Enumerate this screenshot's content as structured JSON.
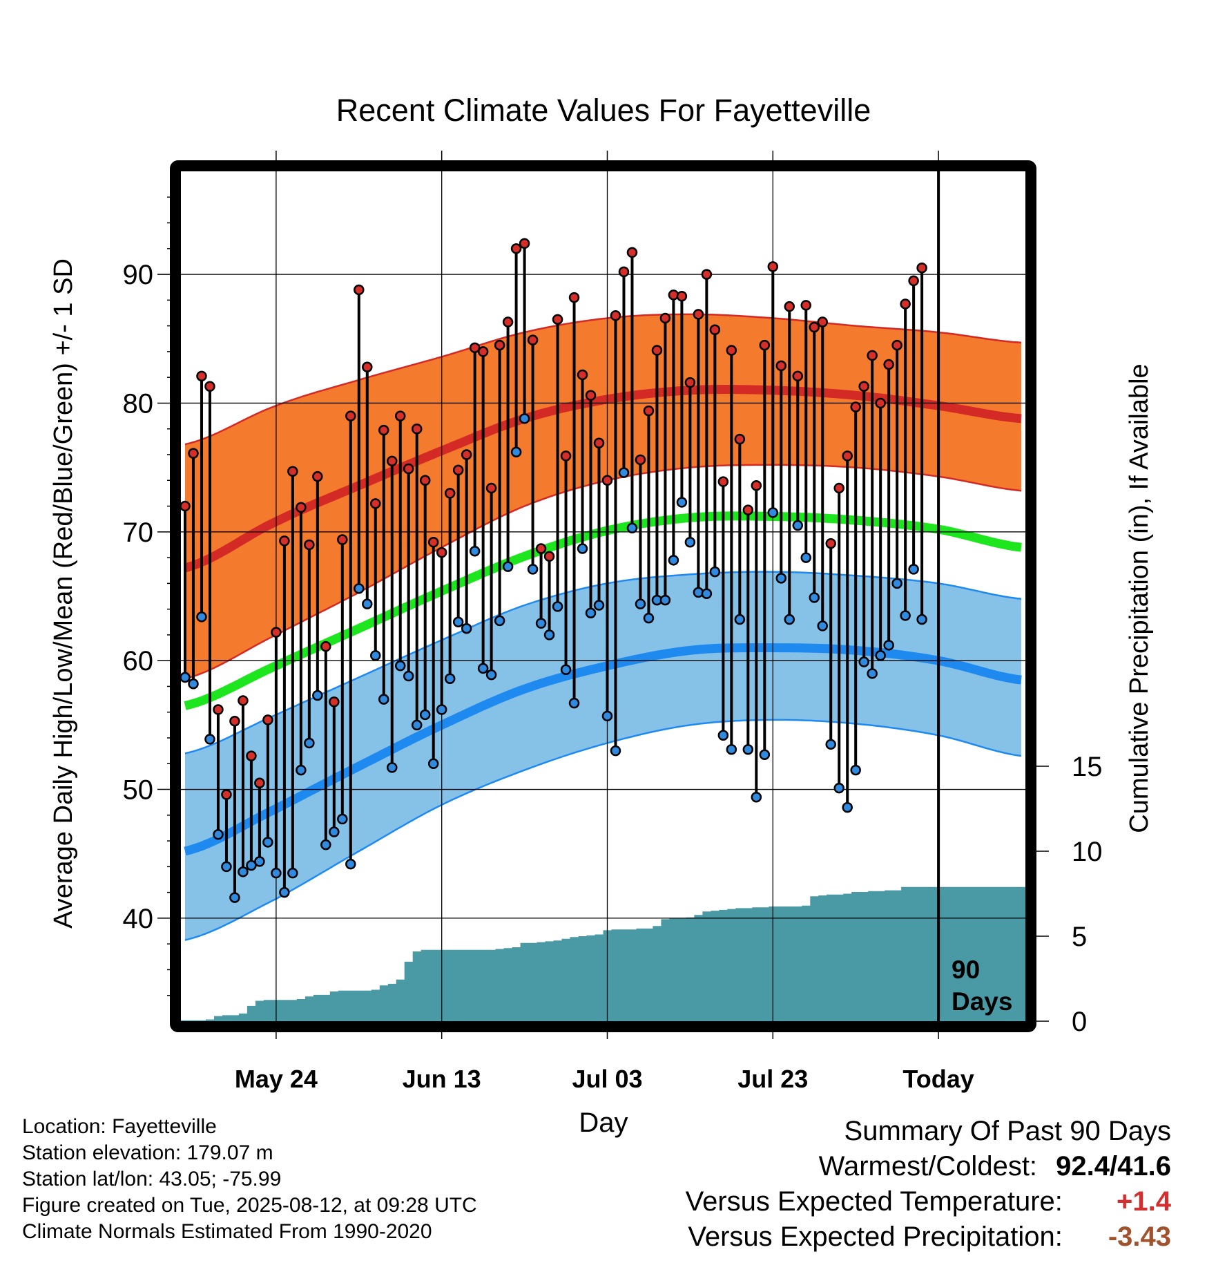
{
  "chart_data": {
    "type": "line",
    "title": "Recent Climate Values For Fayetteville",
    "xlabel": "Day",
    "ylabel_left": "Average Daily High/Low/Mean (Red/Blue/Green) +/- 1 SD",
    "ylabel_right": "Cumulative Precipitation (in), If Available",
    "x_tick_labels": [
      "May 24",
      "Jun 13",
      "Jul 03",
      "Jul 23",
      "Today"
    ],
    "x_tick_days": [
      12,
      32,
      52,
      72,
      92
    ],
    "y_ticks_left": [
      40,
      50,
      60,
      70,
      80,
      90
    ],
    "y_ticks_right": [
      0,
      5,
      10,
      15
    ],
    "ylim_left": [
      32,
      98
    ],
    "ylim_right": [
      0,
      50
    ],
    "xlim": [
      0.5,
      102.5
    ],
    "today_day": 92,
    "today_label_line1": "90",
    "today_label_line2": "Days",
    "grid": true,
    "colors": {
      "high_band": "#F47A2E",
      "high_mean": "#D42A26",
      "low_band": "#86C1E8",
      "low_mean": "#1E8AF0",
      "mean": "#1EE61E",
      "precip": "#4A9AA6",
      "high_dot": "#D62F2A",
      "low_dot": "#2F8AE0"
    },
    "normal_days": [
      1,
      12,
      22,
      32,
      42,
      52,
      62,
      72,
      82,
      92,
      102
    ],
    "normal_high_mean": [
      67.2,
      70.8,
      73.6,
      76.3,
      78.8,
      80.3,
      81.0,
      81.0,
      80.6,
      79.8,
      78.8
    ],
    "normal_high_plus_sd": [
      76.8,
      79.8,
      81.8,
      83.6,
      85.5,
      86.6,
      86.9,
      86.6,
      86.0,
      85.5,
      84.7
    ],
    "normal_high_minus_sd": [
      58.6,
      62.0,
      65.3,
      68.8,
      72.0,
      74.0,
      75.0,
      75.2,
      75.0,
      74.3,
      73.2
    ],
    "normal_mean": [
      56.5,
      59.6,
      62.5,
      65.4,
      68.1,
      70.1,
      71.1,
      71.2,
      70.9,
      70.2,
      68.8
    ],
    "normal_low_mean": [
      45.2,
      48.5,
      51.8,
      55.0,
      57.8,
      59.6,
      60.8,
      61.0,
      60.8,
      60.0,
      58.5
    ],
    "normal_low_plus_sd": [
      52.8,
      55.8,
      58.7,
      61.6,
      64.3,
      66.0,
      66.7,
      66.9,
      66.6,
      66.0,
      64.8
    ],
    "normal_low_minus_sd": [
      38.3,
      41.5,
      45.2,
      48.8,
      51.5,
      53.6,
      55.0,
      55.4,
      55.1,
      54.2,
      52.6
    ],
    "daily_high": [
      72.0,
      76.1,
      82.1,
      81.3,
      56.2,
      49.6,
      55.3,
      56.9,
      52.6,
      50.5,
      55.4,
      62.2,
      69.3,
      74.7,
      71.9,
      69.0,
      74.3,
      61.1,
      56.8,
      69.4,
      79.0,
      88.8,
      82.8,
      72.2,
      77.9,
      75.5,
      79.0,
      74.9,
      78.0,
      74.0,
      69.2,
      68.4,
      73.0,
      74.8,
      76.0,
      84.3,
      84.0,
      73.4,
      84.5,
      86.3,
      92.0,
      92.4,
      84.9,
      68.7,
      68.1,
      86.5,
      75.9,
      88.2,
      82.2,
      80.6,
      76.9,
      74.0,
      86.8,
      90.2,
      91.7,
      75.6,
      79.4,
      84.1,
      86.6,
      88.4,
      88.3,
      81.6,
      86.9,
      90.0,
      85.7,
      73.9,
      84.1,
      77.2,
      71.7,
      73.6,
      84.5,
      90.6,
      82.9,
      87.5,
      82.1,
      87.6,
      85.9,
      86.3,
      69.1,
      73.4,
      75.9,
      79.7,
      81.3,
      83.7,
      80.0,
      83.0,
      84.5,
      87.7,
      89.5,
      90.5
    ],
    "daily_low": [
      58.7,
      58.2,
      63.4,
      53.9,
      46.5,
      44.0,
      41.6,
      43.6,
      44.1,
      44.4,
      45.9,
      43.5,
      42.0,
      43.5,
      51.5,
      53.6,
      57.3,
      45.7,
      46.7,
      47.7,
      44.2,
      65.6,
      64.4,
      60.4,
      57.0,
      51.7,
      59.6,
      58.8,
      55.0,
      55.8,
      52.0,
      56.2,
      58.6,
      63.0,
      62.5,
      68.5,
      59.4,
      58.9,
      63.1,
      67.3,
      76.2,
      78.8,
      67.1,
      62.9,
      62.0,
      64.2,
      59.3,
      56.7,
      68.7,
      63.7,
      64.3,
      55.7,
      53.0,
      74.6,
      70.3,
      64.4,
      63.3,
      64.7,
      64.7,
      67.8,
      72.3,
      69.2,
      65.3,
      65.2,
      66.9,
      54.2,
      53.1,
      63.2,
      53.1,
      49.4,
      52.7,
      71.5,
      66.4,
      63.2,
      70.5,
      68.0,
      64.9,
      62.7,
      53.5,
      50.1,
      48.6,
      51.5,
      59.9,
      59.0,
      60.4,
      61.2,
      66.0,
      63.5,
      67.1,
      63.2
    ],
    "cumulative_precip_days": [
      1,
      4,
      5,
      6,
      7,
      8,
      9,
      10,
      11,
      12,
      13,
      14,
      15,
      16,
      17,
      18,
      19,
      20,
      21,
      22,
      23,
      24,
      25,
      26,
      27,
      28,
      29,
      30,
      31,
      32,
      33,
      34,
      35,
      36,
      37,
      38,
      39,
      40,
      41,
      42,
      43,
      44,
      45,
      46,
      47,
      48,
      49,
      50,
      51,
      52,
      53,
      54,
      55,
      56,
      57,
      58,
      59,
      60,
      61,
      62,
      63,
      64,
      65,
      66,
      67,
      68,
      69,
      70,
      71,
      72,
      73,
      74,
      75,
      76,
      77,
      78,
      79,
      80,
      81,
      82,
      83,
      84,
      85,
      86,
      87,
      88,
      89,
      90,
      91,
      92,
      102
    ],
    "cumulative_precip_in": [
      0.05,
      0.1,
      0.3,
      0.35,
      0.35,
      0.45,
      0.9,
      1.2,
      1.25,
      1.25,
      1.25,
      1.25,
      1.3,
      1.45,
      1.55,
      1.55,
      1.75,
      1.8,
      1.8,
      1.8,
      1.8,
      1.85,
      2.1,
      2.2,
      2.45,
      3.5,
      4.1,
      4.2,
      4.2,
      4.2,
      4.2,
      4.2,
      4.2,
      4.2,
      4.2,
      4.2,
      4.25,
      4.3,
      4.35,
      4.6,
      4.6,
      4.65,
      4.7,
      4.75,
      4.85,
      4.95,
      5.0,
      5.05,
      5.1,
      5.35,
      5.4,
      5.4,
      5.4,
      5.45,
      5.45,
      5.6,
      6.0,
      6.05,
      6.05,
      6.1,
      6.25,
      6.45,
      6.5,
      6.55,
      6.6,
      6.65,
      6.65,
      6.7,
      6.7,
      6.75,
      6.75,
      6.75,
      6.75,
      6.8,
      7.35,
      7.4,
      7.45,
      7.45,
      7.5,
      7.6,
      7.6,
      7.65,
      7.65,
      7.7,
      7.7,
      7.9,
      7.9,
      7.9,
      7.9,
      7.9,
      7.9
    ]
  },
  "footer": {
    "location": "Location: Fayetteville",
    "elevation": "Station elevation: 179.07 m",
    "latlon": "Station lat/lon: 43.05; -75.99",
    "created": "Figure created on Tue, 2025-08-12, at 09:28 UTC",
    "normals": "Climate Normals Estimated From 1990-2020"
  },
  "summary": {
    "heading": "Summary Of Past 90 Days",
    "warmest_coldest_label": "Warmest/Coldest:",
    "warmest_coldest_value": "92.4/41.6",
    "temp_label": "Versus Expected Temperature:",
    "temp_value": "+1.4",
    "temp_color": "#D32F2F",
    "precip_label": "Versus Expected Precipitation:",
    "precip_value": "-3.43",
    "precip_color": "#A0522D"
  }
}
